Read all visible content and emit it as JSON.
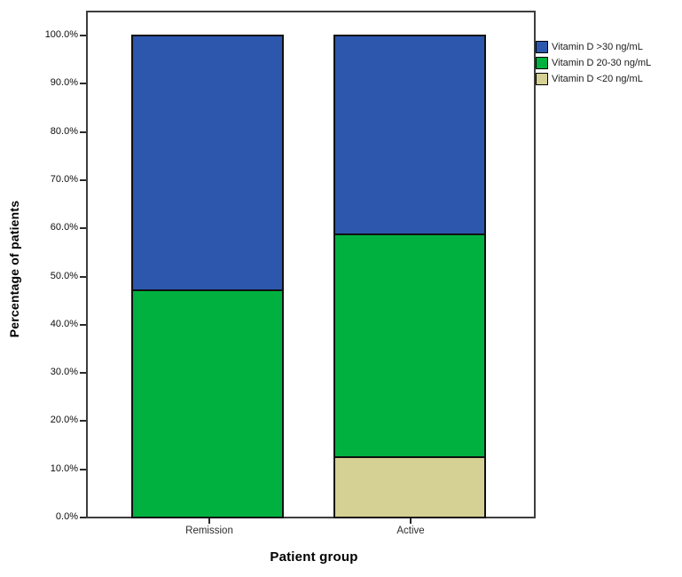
{
  "chart_data": {
    "type": "bar",
    "variant": "stacked-100-percent",
    "xlabel": "Patient group",
    "ylabel": "Percentage of patients",
    "categories": [
      "Remission",
      "Active"
    ],
    "series": [
      {
        "name": "Vitamin D >30 ng/mL",
        "color": "#2d57ad",
        "values": [
          52.9,
          41.3
        ]
      },
      {
        "name": "Vitamin D 20-30 ng/mL",
        "color": "#00b140",
        "values": [
          47.1,
          46.5
        ]
      },
      {
        "name": "Vitamin D <20 ng/mL",
        "color": "#d5d093",
        "values": [
          0.0,
          12.2
        ]
      }
    ],
    "ylim": [
      0,
      100
    ],
    "ytick_labels": [
      "0.0%",
      "10.0%",
      "20.0%",
      "30.0%",
      "40.0%",
      "50.0%",
      "60.0%",
      "70.0%",
      "80.0%",
      "90.0%",
      "100.0%"
    ],
    "legend_position": "top-right-outside",
    "grid": false,
    "colors": {
      "bar_outline": "#101010",
      "frame": "#3d3d3d",
      "background": "#ffffff"
    }
  }
}
